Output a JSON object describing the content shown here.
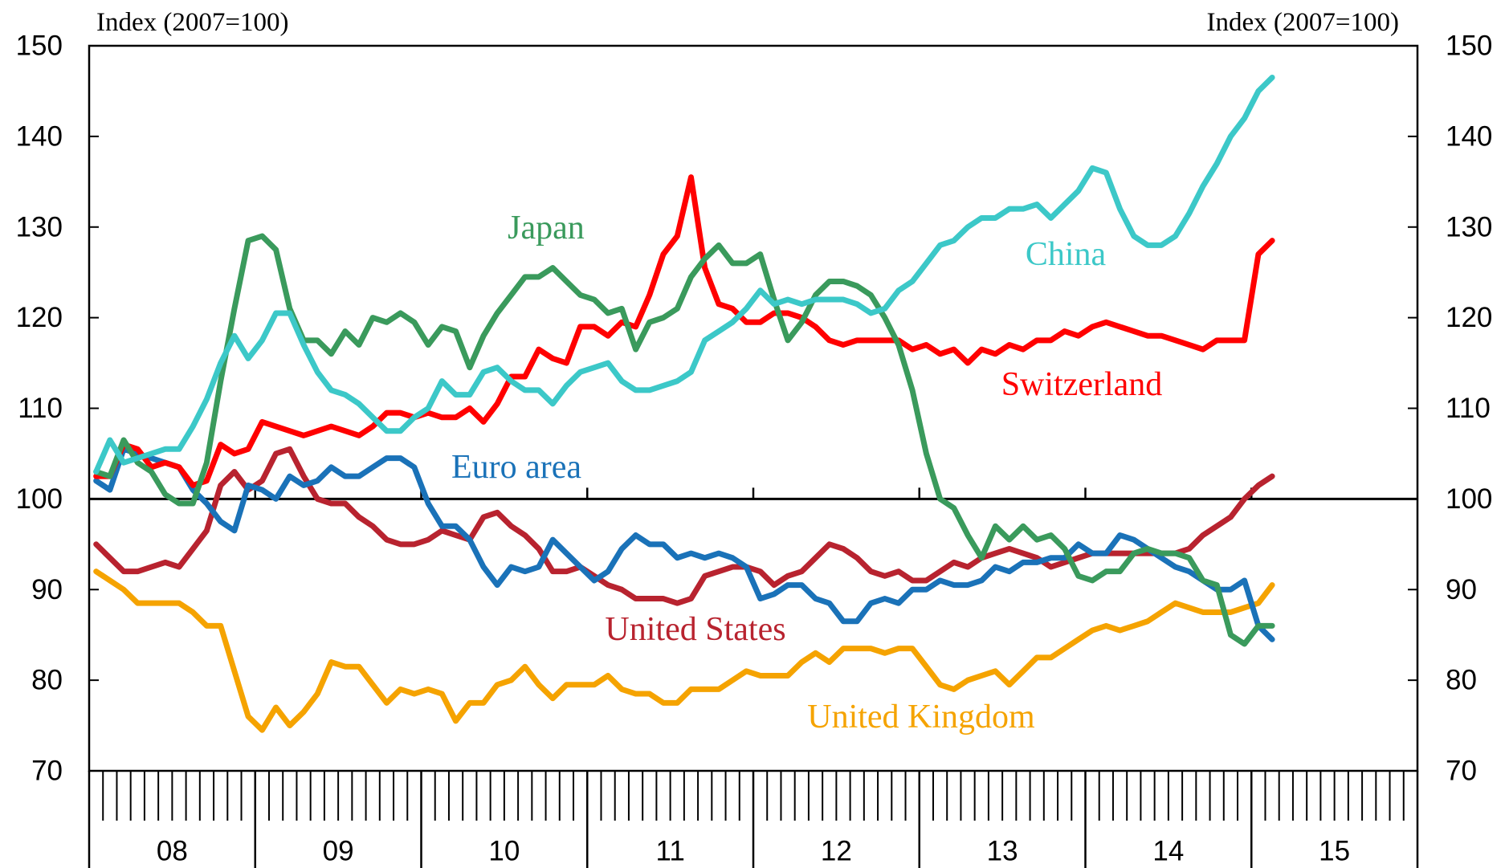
{
  "chart_data": {
    "type": "line",
    "y_label": "Index (2007=100)",
    "y2_label": "Index (2007=100)",
    "xlim": [
      2008,
      2016
    ],
    "xticks": [
      {
        "value": 2008.5,
        "label": "08"
      },
      {
        "value": 2009.5,
        "label": "09"
      },
      {
        "value": 2010.5,
        "label": "10"
      },
      {
        "value": 2011.5,
        "label": "11"
      },
      {
        "value": 2012.5,
        "label": "12"
      },
      {
        "value": 2013.5,
        "label": "13"
      },
      {
        "value": 2014.5,
        "label": "14"
      },
      {
        "value": 2015.5,
        "label": "15"
      }
    ],
    "ylim": [
      70,
      150
    ],
    "yticks": [
      70,
      80,
      90,
      100,
      110,
      120,
      130,
      140,
      150
    ],
    "y2lim": [
      70,
      150
    ],
    "y2ticks": [
      70,
      80,
      90,
      100,
      110,
      120,
      130,
      140,
      150
    ],
    "hline": 100,
    "x": [
      2008.042,
      2008.125,
      2008.208,
      2008.292,
      2008.375,
      2008.458,
      2008.542,
      2008.625,
      2008.708,
      2008.792,
      2008.875,
      2008.958,
      2009.042,
      2009.125,
      2009.208,
      2009.292,
      2009.375,
      2009.458,
      2009.542,
      2009.625,
      2009.708,
      2009.792,
      2009.875,
      2009.958,
      2010.042,
      2010.125,
      2010.208,
      2010.292,
      2010.375,
      2010.458,
      2010.542,
      2010.625,
      2010.708,
      2010.792,
      2010.875,
      2010.958,
      2011.042,
      2011.125,
      2011.208,
      2011.292,
      2011.375,
      2011.458,
      2011.542,
      2011.625,
      2011.708,
      2011.792,
      2011.875,
      2011.958,
      2012.042,
      2012.125,
      2012.208,
      2012.292,
      2012.375,
      2012.458,
      2012.542,
      2012.625,
      2012.708,
      2012.792,
      2012.875,
      2012.958,
      2013.042,
      2013.125,
      2013.208,
      2013.292,
      2013.375,
      2013.458,
      2013.542,
      2013.625,
      2013.708,
      2013.792,
      2013.875,
      2013.958,
      2014.042,
      2014.125,
      2014.208,
      2014.292,
      2014.375,
      2014.458,
      2014.542,
      2014.625,
      2014.708,
      2014.792,
      2014.875,
      2014.958,
      2015.042,
      2015.125
    ],
    "series": [
      {
        "name": "United Kingdom",
        "color": "#f5a300",
        "values": [
          92,
          91,
          90,
          88.5,
          88.5,
          88.5,
          88.5,
          87.5,
          86,
          86,
          81,
          76,
          74.5,
          77,
          75,
          76.5,
          78.5,
          82,
          81.5,
          81.5,
          79.5,
          77.5,
          79,
          78.5,
          79,
          78.5,
          75.5,
          77.5,
          77.5,
          79.5,
          80,
          81.5,
          79.5,
          78,
          79.5,
          79.5,
          79.5,
          80.5,
          79,
          78.5,
          78.5,
          77.5,
          77.5,
          79,
          79,
          79,
          80,
          81,
          80.5,
          80.5,
          80.5,
          82,
          83,
          82,
          83.5,
          83.5,
          83.5,
          83,
          83.5,
          83.5,
          81.5,
          79.5,
          79,
          80,
          80.5,
          81,
          79.5,
          81,
          82.5,
          82.5,
          83.5,
          84.5,
          85.5,
          86,
          85.5,
          86,
          86.5,
          87.5,
          88.5,
          88,
          87.5,
          87.5,
          87.5,
          88,
          88.5,
          90.5
        ]
      },
      {
        "name": "United States",
        "color": "#b8232f",
        "values": [
          95,
          93.5,
          92,
          92,
          92.5,
          93,
          92.5,
          94.5,
          96.5,
          101.5,
          103,
          101,
          102,
          105,
          105.5,
          102.5,
          100,
          99.5,
          99.5,
          98,
          97,
          95.5,
          95,
          95,
          95.5,
          96.5,
          96,
          95.5,
          98,
          98.5,
          97,
          96,
          94.5,
          92,
          92,
          92.5,
          91.5,
          90.5,
          90,
          89,
          89,
          89,
          88.5,
          89,
          91.5,
          92,
          92.5,
          92.5,
          92,
          90.5,
          91.5,
          92,
          93.5,
          95,
          94.5,
          93.5,
          92,
          91.5,
          92,
          91,
          91,
          92,
          93,
          92.5,
          93.5,
          94,
          94.5,
          94,
          93.5,
          92.5,
          93,
          93.5,
          94,
          94,
          94,
          94,
          94,
          94,
          94,
          94.5,
          96,
          97,
          98,
          100,
          101.5,
          102.5
        ]
      },
      {
        "name": "Euro area",
        "color": "#1a72b8",
        "values": [
          102,
          101,
          105.5,
          105,
          104.5,
          104,
          103.5,
          101,
          99.5,
          97.5,
          96.5,
          101.5,
          101,
          100,
          102.5,
          101.5,
          102,
          103.5,
          102.5,
          102.5,
          103.5,
          104.5,
          104.5,
          103.5,
          99.5,
          97,
          97,
          95.5,
          92.5,
          90.5,
          92.5,
          92,
          92.5,
          95.5,
          94,
          92.5,
          91,
          92,
          94.5,
          96,
          95,
          95,
          93.5,
          94,
          93.5,
          94,
          93.5,
          92.5,
          89,
          89.5,
          90.5,
          90.5,
          89,
          88.5,
          86.5,
          86.5,
          88.5,
          89,
          88.5,
          90,
          90,
          91,
          90.5,
          90.5,
          91,
          92.5,
          92,
          93,
          93,
          93.5,
          93.5,
          95,
          94,
          94,
          96,
          95.5,
          94.5,
          93.5,
          92.5,
          92,
          91,
          90,
          90,
          91,
          86,
          84.5
        ]
      },
      {
        "name": "Switzerland",
        "color": "#ff0000",
        "values": [
          102.5,
          102.5,
          106,
          105.5,
          103.5,
          104,
          103.5,
          101.5,
          102,
          106,
          105,
          105.5,
          108.5,
          108,
          107.5,
          107,
          107.5,
          108,
          107.5,
          107,
          108,
          109.5,
          109.5,
          109,
          109.5,
          109,
          109,
          110,
          108.5,
          110.5,
          113.5,
          113.5,
          116.5,
          115.5,
          115,
          119,
          119,
          118,
          119.5,
          119,
          122.5,
          127,
          129,
          135.5,
          125.5,
          121.5,
          121,
          119.5,
          119.5,
          120.5,
          120.5,
          120,
          119,
          117.5,
          117,
          117.5,
          117.5,
          117.5,
          117.5,
          116.5,
          117,
          116,
          116.5,
          115,
          116.5,
          116,
          117,
          116.5,
          117.5,
          117.5,
          118.5,
          118,
          119,
          119.5,
          119,
          118.5,
          118,
          118,
          117.5,
          117,
          116.5,
          117.5,
          117.5,
          117.5,
          127,
          128.5
        ]
      },
      {
        "name": "Japan",
        "color": "#3a9a5c",
        "values": [
          103,
          102.5,
          106.5,
          104,
          103,
          100.5,
          99.5,
          99.5,
          104,
          113,
          121,
          128.5,
          129,
          127.5,
          121,
          117.5,
          117.5,
          116,
          118.5,
          117,
          120,
          119.5,
          120.5,
          119.5,
          117,
          119,
          118.5,
          114.5,
          118,
          120.5,
          122.5,
          124.5,
          124.5,
          125.5,
          124,
          122.5,
          122,
          120.5,
          121,
          116.5,
          119.5,
          120,
          121,
          124.5,
          126.5,
          128,
          126,
          126,
          127,
          122,
          117.5,
          119.5,
          122.5,
          124,
          124,
          123.5,
          122.5,
          120,
          117,
          112,
          105,
          100,
          99,
          96,
          93.5,
          97,
          95.5,
          97,
          95.5,
          96,
          94.5,
          91.5,
          91,
          92,
          92,
          94,
          94.5,
          94,
          94,
          93.5,
          91,
          90.5,
          85,
          84,
          86,
          86
        ]
      },
      {
        "name": "China",
        "color": "#3cc8c8",
        "values": [
          103,
          106.5,
          104,
          104.5,
          105,
          105.5,
          105.5,
          108,
          111,
          115,
          118,
          115.5,
          117.5,
          120.5,
          120.5,
          117,
          114,
          112,
          111.5,
          110.5,
          109,
          107.5,
          107.5,
          109,
          110,
          113,
          111.5,
          111.5,
          114,
          114.5,
          113,
          112,
          112,
          110.5,
          112.5,
          114,
          114.5,
          115,
          113,
          112,
          112,
          112.5,
          113,
          114,
          117.5,
          118.5,
          119.5,
          121,
          123,
          121.5,
          122,
          121.5,
          122,
          122,
          122,
          121.5,
          120.5,
          121,
          123,
          124,
          126,
          128,
          128.5,
          130,
          131,
          131,
          132,
          132,
          132.5,
          131,
          132.5,
          134,
          136.5,
          136,
          132,
          129,
          128,
          128,
          129,
          131.5,
          134.5,
          137,
          140,
          142,
          145,
          146.5
        ]
      }
    ]
  }
}
